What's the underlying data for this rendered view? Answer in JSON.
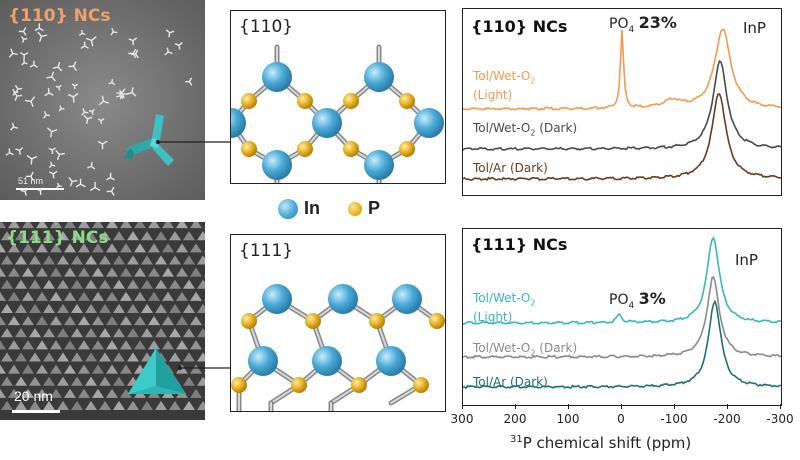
{
  "colors": {
    "in_atom": "#4aa9d6",
    "p_atom": "#e8b321",
    "accent_110": "#f0a06a",
    "accent_111": "#8ed88a",
    "tetrapod": "#3cc2c2",
    "tol_wet_light_110": "#f49a4e",
    "tol_wet_dark_110": "#4a4a4a",
    "tol_ar_dark_110": "#6a3a1e",
    "tol_wet_light_111": "#35b8bf",
    "tol_wet_dark_111": "#8a8a8a",
    "tol_ar_dark_111": "#1f6f73"
  },
  "tem": {
    "top_label": "{110} NCs",
    "top_scale": "51 nm",
    "bottom_label": "{111} NCs",
    "bottom_scale": "20 nm"
  },
  "structures": {
    "top_title": "{110}",
    "bottom_title": "{111}"
  },
  "legend": {
    "in_label": "In",
    "p_label": "P"
  },
  "spectra": {
    "top": {
      "title": "{110} NCs",
      "inp_label": "InP",
      "po4_label": "PO",
      "po4_sub": "4",
      "po4_value": "23%",
      "traces": [
        {
          "label_pre": "Tol/Wet-O",
          "label_sub": "2",
          "label_post": "",
          "label_line2": "(Light)"
        },
        {
          "label_pre": "Tol/Wet-O",
          "label_sub": "2",
          "label_post": " (Dark)",
          "label_line2": ""
        },
        {
          "label_pre": "Tol/Ar (Dark)",
          "label_sub": "",
          "label_post": "",
          "label_line2": ""
        }
      ]
    },
    "bottom": {
      "title": "{111} NCs",
      "inp_label": "InP",
      "po4_label": "PO",
      "po4_sub": "4",
      "po4_value": "3%",
      "traces": [
        {
          "label_pre": "Tol/Wet-O",
          "label_sub": "2",
          "label_post": "",
          "label_line2": "(Light)"
        },
        {
          "label_pre": "Tol/Wet-O",
          "label_sub": "2",
          "label_post": " (Dark)",
          "label_line2": ""
        },
        {
          "label_pre": "Tol/Ar (Dark)",
          "label_sub": "",
          "label_post": "",
          "label_line2": ""
        }
      ]
    },
    "x_axis": {
      "ticks": [
        "300",
        "200",
        "100",
        "0",
        "-100",
        "-200",
        "-300"
      ],
      "label_sup": "31",
      "label_rest": "P chemical shift (ppm)",
      "range": [
        300,
        -300
      ]
    }
  }
}
